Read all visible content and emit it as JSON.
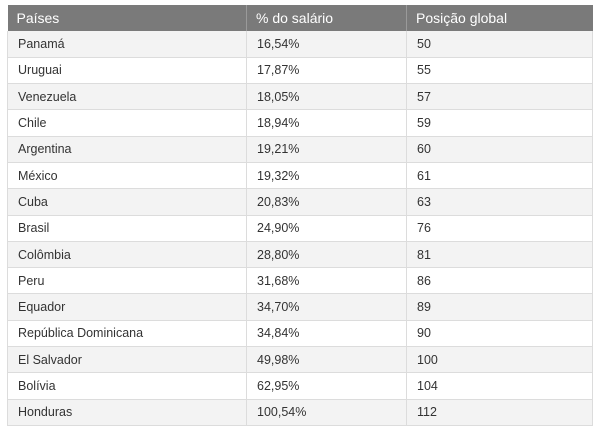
{
  "table": {
    "headers": [
      "Países",
      "% do salário",
      "Posição global"
    ],
    "rows": [
      [
        "Panamá",
        "16,54%",
        "50"
      ],
      [
        "Uruguai",
        "17,87%",
        "55"
      ],
      [
        "Venezuela",
        "18,05%",
        "57"
      ],
      [
        "Chile",
        "18,94%",
        "59"
      ],
      [
        "Argentina",
        "19,21%",
        "60"
      ],
      [
        "México",
        "19,32%",
        "61"
      ],
      [
        "Cuba",
        "20,83%",
        "63"
      ],
      [
        "Brasil",
        "24,90%",
        "76"
      ],
      [
        "Colômbia",
        "28,80%",
        "81"
      ],
      [
        "Peru",
        "31,68%",
        "86"
      ],
      [
        "Equador",
        "34,70%",
        "89"
      ],
      [
        "República Dominicana",
        "34,84%",
        "90"
      ],
      [
        "El Salvador",
        "49,98%",
        "100"
      ],
      [
        "Bolívia",
        "62,95%",
        "104"
      ],
      [
        "Honduras",
        "100,54%",
        "112"
      ]
    ]
  },
  "colors": {
    "header_bg": "#7a7a7a",
    "header_text": "#ffffff",
    "row_alt_bg": "#f3f3f3",
    "row_bg": "#ffffff",
    "grid_line": "#dcdcdc",
    "cell_text": "#333333"
  }
}
